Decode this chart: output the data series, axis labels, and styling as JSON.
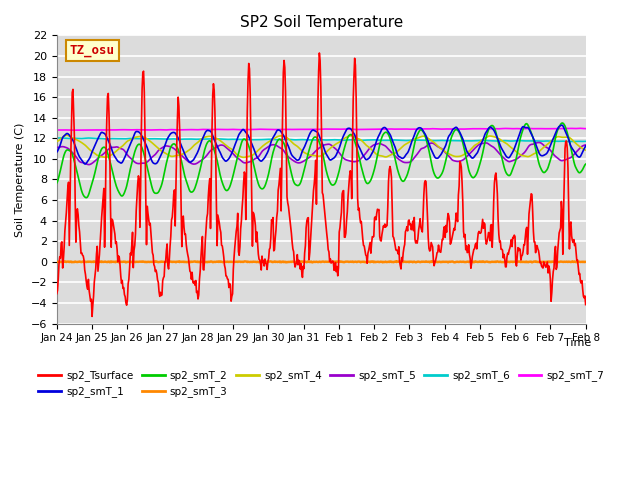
{
  "title": "SP2 Soil Temperature",
  "xlabel": "Time",
  "ylabel": "Soil Temperature (C)",
  "ylim": [
    -6,
    22
  ],
  "yticks": [
    -6,
    -4,
    -2,
    0,
    2,
    4,
    6,
    8,
    10,
    12,
    14,
    16,
    18,
    20,
    22
  ],
  "bg_color": "#dcdcdc",
  "fig_color": "#ffffff",
  "grid_color": "#ffffff",
  "tz_label": "TZ_osu",
  "tz_box_facecolor": "#ffffcc",
  "tz_box_edgecolor": "#cc8800",
  "series_colors": {
    "sp2_Tsurface": "#ff0000",
    "sp2_smT_1": "#0000dd",
    "sp2_smT_2": "#00cc00",
    "sp2_smT_3": "#ff8800",
    "sp2_smT_4": "#cccc00",
    "sp2_smT_5": "#9900cc",
    "sp2_smT_6": "#00cccc",
    "sp2_smT_7": "#ff00ff"
  },
  "x_tick_labels": [
    "Jan 24",
    "Jan 25",
    "Jan 26",
    "Jan 27",
    "Jan 28",
    "Jan 29",
    "Jan 30",
    "Jan 31",
    "Feb 1",
    "Feb 2",
    "Feb 3",
    "Feb 4",
    "Feb 5",
    "Feb 6",
    "Feb 7",
    "Feb 8"
  ],
  "n_points": 720
}
